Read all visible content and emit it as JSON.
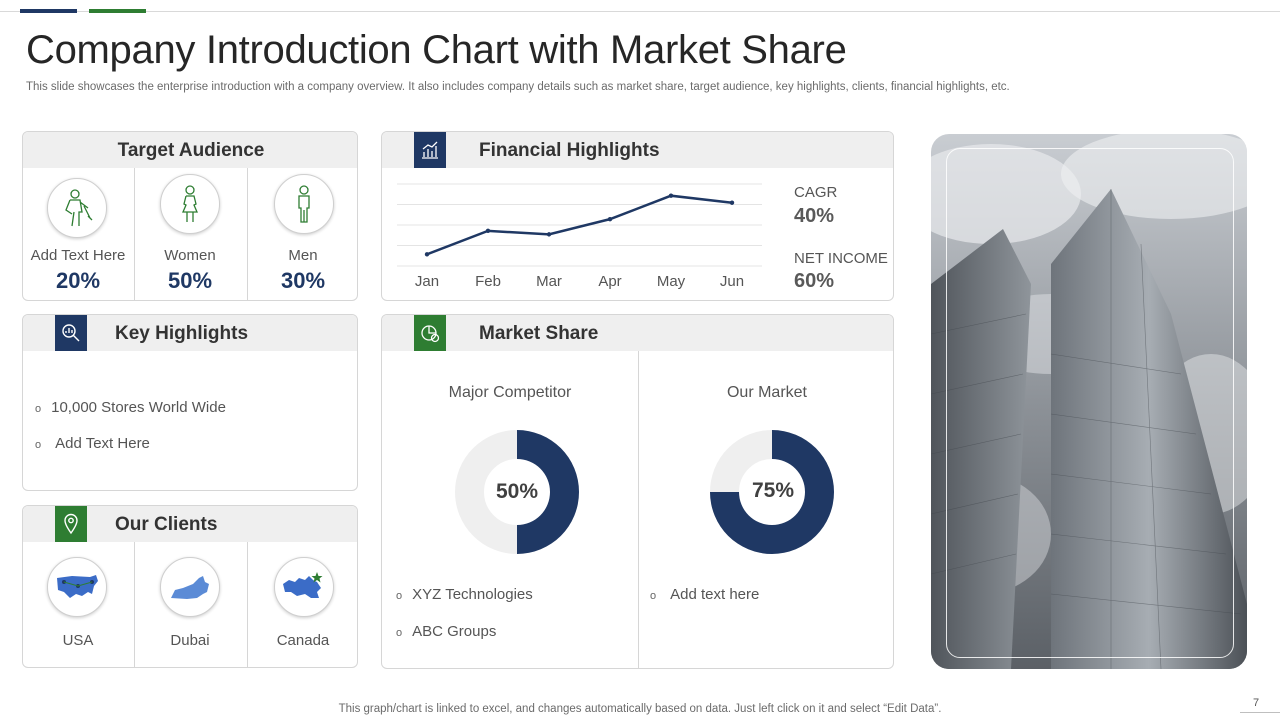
{
  "header": {
    "title": "Company Introduction Chart with Market Share",
    "subtitle": "This slide showcases the enterprise introduction with a company overview. It also includes company details such as market share, target audience, key highlights, clients, financial highlights, etc."
  },
  "target_audience": {
    "title": "Target Audience",
    "items": [
      {
        "label": "Add Text Here",
        "value": "20%",
        "icon": "worker-icon"
      },
      {
        "label": "Women",
        "value": "50%",
        "icon": "woman-icon"
      },
      {
        "label": "Men",
        "value": "30%",
        "icon": "man-icon"
      }
    ]
  },
  "key_highlights": {
    "title": "Key Highlights",
    "icon": "search-chart-icon",
    "items": [
      "10,000 Stores World Wide",
      "Add Text Here"
    ]
  },
  "our_clients": {
    "title": "Our Clients",
    "icon": "location-pin-icon",
    "items": [
      {
        "label": "USA",
        "icon": "usa-map-icon"
      },
      {
        "label": "Dubai",
        "icon": "uae-map-icon"
      },
      {
        "label": "Canada",
        "icon": "canada-map-icon"
      }
    ]
  },
  "financial_highlights": {
    "title": "Financial Highlights",
    "icon": "bar-chart-icon",
    "stats": [
      {
        "label": "CAGR",
        "value": "40%"
      },
      {
        "label": "NET INCOME",
        "value": "60%"
      }
    ]
  },
  "market_share": {
    "title": "Market Share",
    "icon": "pie-chart-icon",
    "panels": [
      {
        "title": "Major Competitor",
        "value": "50%",
        "bullets": [
          "XYZ Technologies",
          "ABC Groups"
        ]
      },
      {
        "title": "Our Market",
        "value": "75%",
        "bullets": [
          "Add text here"
        ]
      }
    ]
  },
  "chart_data": [
    {
      "type": "line",
      "categories": [
        "Jan",
        "Feb",
        "Mar",
        "Apr",
        "May",
        "Jun"
      ],
      "series": [
        {
          "values": [
            1.0,
            3.0,
            2.7,
            4.0,
            6.0,
            5.4
          ]
        }
      ],
      "ylim": [
        0,
        7
      ],
      "grid": true
    },
    {
      "type": "pie",
      "categories": [
        "Major Competitor",
        "Rest"
      ],
      "values": [
        50,
        50
      ]
    },
    {
      "type": "pie",
      "categories": [
        "Our Market",
        "Rest"
      ],
      "values": [
        75,
        25
      ]
    }
  ],
  "colors": {
    "navy": "#1f3864",
    "green": "#2e7d32",
    "donut_bg": "#efefef"
  },
  "image": {
    "icon": "skyscraper-photo"
  },
  "footer": {
    "note": "This graph/chart is linked to excel, and changes automatically based on data. Just left click on it and select “Edit Data”.",
    "page": "7"
  }
}
